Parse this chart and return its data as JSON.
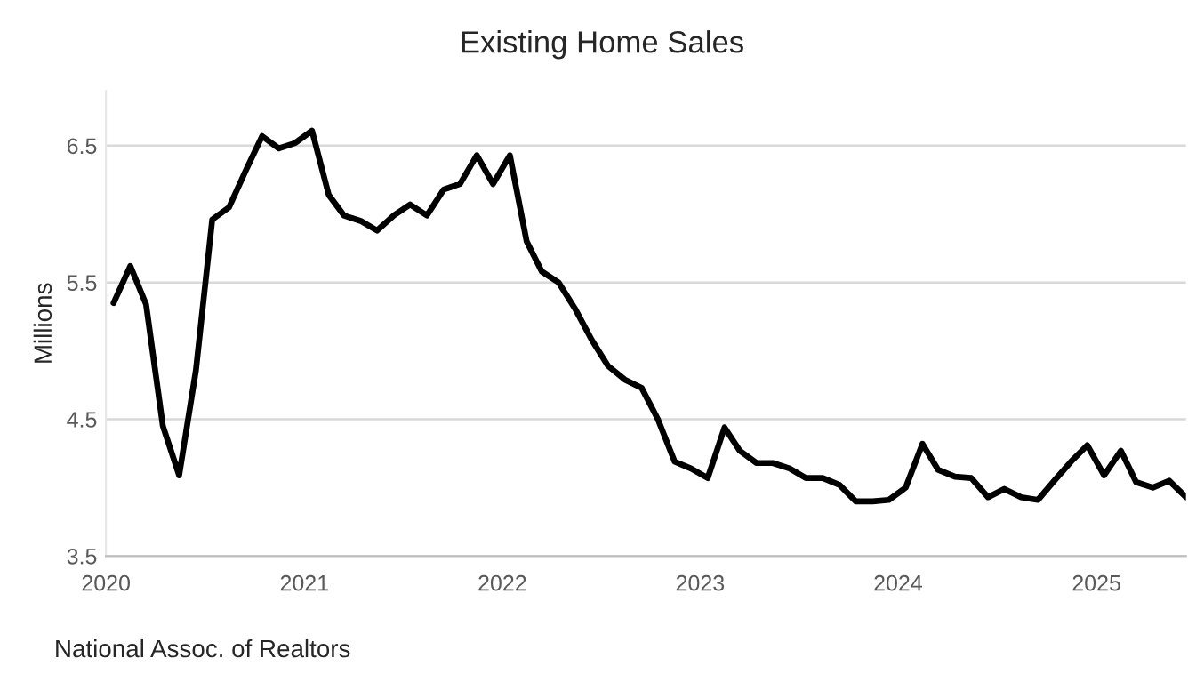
{
  "chart_data": {
    "type": "line",
    "title": "Existing Home Sales",
    "ylabel": "Millions",
    "x": [
      "2020-01-15",
      "2020-02-15",
      "2020-03-15",
      "2020-04-15",
      "2020-05-15",
      "2020-06-15",
      "2020-07-15",
      "2020-08-15",
      "2020-09-15",
      "2020-10-15",
      "2020-11-15",
      "2020-12-15",
      "2021-01-15",
      "2021-02-15",
      "2021-03-15",
      "2021-04-15",
      "2021-05-15",
      "2021-06-15",
      "2021-07-15",
      "2021-08-15",
      "2021-09-15",
      "2021-10-15",
      "2021-11-15",
      "2021-12-15",
      "2022-01-15",
      "2022-02-15",
      "2022-03-15",
      "2022-04-15",
      "2022-05-15",
      "2022-06-15",
      "2022-07-15",
      "2022-08-15",
      "2022-09-15",
      "2022-10-15",
      "2022-11-15",
      "2022-12-15",
      "2023-01-15",
      "2023-02-15",
      "2023-03-15",
      "2023-04-15",
      "2023-05-15",
      "2023-06-15",
      "2023-07-15",
      "2023-08-15",
      "2023-09-15",
      "2023-10-15",
      "2023-11-15",
      "2023-12-15",
      "2024-01-15",
      "2024-02-15",
      "2024-03-15",
      "2024-04-15",
      "2024-05-15",
      "2024-06-15",
      "2024-07-15",
      "2024-08-15",
      "2024-09-15",
      "2024-10-15",
      "2024-11-15",
      "2024-12-15",
      "2025-01-15",
      "2025-02-15",
      "2025-03-15",
      "2025-04-15",
      "2025-05-15",
      "2025-06-15"
    ],
    "series": [
      {
        "color": "#000000",
        "values": [
          5.35,
          5.62,
          5.34,
          4.45,
          4.09,
          4.86,
          5.96,
          6.05,
          6.32,
          6.57,
          6.48,
          6.52,
          6.61,
          6.14,
          5.99,
          5.95,
          5.88,
          5.99,
          6.07,
          5.99,
          6.18,
          6.22,
          6.43,
          6.22,
          6.43,
          5.8,
          5.58,
          5.5,
          5.31,
          5.08,
          4.89,
          4.79,
          4.73,
          4.5,
          4.19,
          4.14,
          4.07,
          4.44,
          4.27,
          4.18,
          4.18,
          4.14,
          4.07,
          4.07,
          4.02,
          3.9,
          3.9,
          3.91,
          4.0,
          4.32,
          4.13,
          4.08,
          4.07,
          3.93,
          3.99,
          3.93,
          3.91,
          4.05,
          4.19,
          4.31,
          4.09,
          4.27,
          4.04,
          4.0,
          4.05,
          3.93
        ]
      }
    ],
    "xlim": [
      "2020-01-01",
      "2025-06-15"
    ],
    "xticks": [
      {
        "value": "2020-01-01",
        "label": "2020"
      },
      {
        "value": "2021-01-01",
        "label": "2021"
      },
      {
        "value": "2022-01-01",
        "label": "2022"
      },
      {
        "value": "2023-01-01",
        "label": "2023"
      },
      {
        "value": "2024-01-01",
        "label": "2024"
      },
      {
        "value": "2025-01-01",
        "label": "2025"
      }
    ],
    "ylim": [
      3.5,
      6.9
    ],
    "yticks": [
      3.5,
      4.5,
      5.5,
      6.5
    ],
    "grid": "y",
    "legend": false,
    "marker": "none",
    "line_style": "solid",
    "annotations": [
      "National Assoc. of Realtors"
    ]
  }
}
